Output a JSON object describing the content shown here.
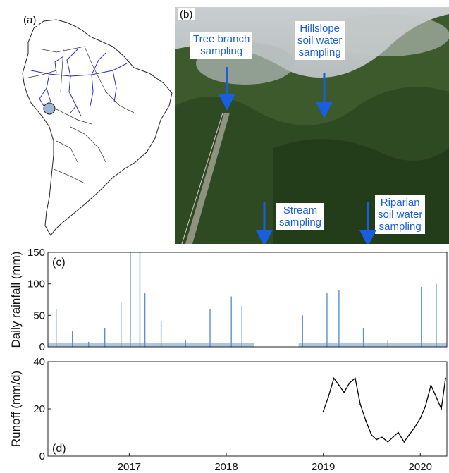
{
  "panels": {
    "a_label": "(a)",
    "b_label": "(b)",
    "c_label": "(c)",
    "d_label": "(d)"
  },
  "photo": {
    "callouts": [
      "Tree branch\nsampling",
      "Hillslope\nsoil water\nsampling",
      "Stream\nsampling",
      "Riparian\nsoil water\nsampling"
    ]
  },
  "colors": {
    "rivers": "#2a2ad8",
    "rainfall": "#5b8fcf",
    "runoff": "#000000",
    "arrow": "#1a5ee0",
    "site_marker": "#9bb6d6"
  },
  "chart_data": [
    {
      "type": "bar",
      "panel": "(c)",
      "ylabel": "Daily rainfall (mm)",
      "ylim": [
        0,
        150
      ],
      "yticks": [
        0,
        50,
        100,
        150
      ],
      "xlim": [
        "2016-03-01",
        "2020-04-10"
      ],
      "data_gap": [
        "2018-04-15",
        "2018-09-30"
      ],
      "x": [
        "2016-04-01",
        "2016-06-01",
        "2016-08-01",
        "2016-10-01",
        "2016-12-01",
        "2017-01-05",
        "2017-02-10",
        "2017-03-01",
        "2017-05-01",
        "2017-08-01",
        "2017-11-01",
        "2018-01-20",
        "2018-03-01",
        "2018-10-15",
        "2019-01-15",
        "2019-03-01",
        "2019-06-01",
        "2019-09-01",
        "2020-01-05",
        "2020-03-01"
      ],
      "values": [
        60,
        25,
        8,
        30,
        70,
        150,
        155,
        85,
        40,
        10,
        60,
        80,
        65,
        50,
        85,
        90,
        30,
        10,
        95,
        100
      ]
    },
    {
      "type": "line",
      "panel": "(d)",
      "ylabel": "Runoff (mm/d)",
      "ylim": [
        0,
        40
      ],
      "yticks": [
        0,
        20,
        40
      ],
      "xticks": [
        "2017",
        "2018",
        "2019",
        "2020"
      ],
      "xlim": [
        "2016-03-01",
        "2020-04-10"
      ],
      "x": [
        "2019-01-01",
        "2019-01-20",
        "2019-02-10",
        "2019-03-01",
        "2019-03-20",
        "2019-04-10",
        "2019-05-01",
        "2019-05-20",
        "2019-06-10",
        "2019-07-01",
        "2019-07-20",
        "2019-08-10",
        "2019-09-01",
        "2019-09-20",
        "2019-10-10",
        "2019-11-01",
        "2019-11-20",
        "2019-12-10",
        "2020-01-01",
        "2020-01-20",
        "2020-02-10",
        "2020-03-01",
        "2020-03-20",
        "2020-04-05"
      ],
      "values": [
        19,
        25,
        33,
        30,
        27,
        31,
        33,
        22,
        15,
        9,
        7,
        8,
        6,
        8,
        10,
        6,
        9,
        12,
        16,
        21,
        30,
        25,
        20,
        33
      ]
    }
  ]
}
